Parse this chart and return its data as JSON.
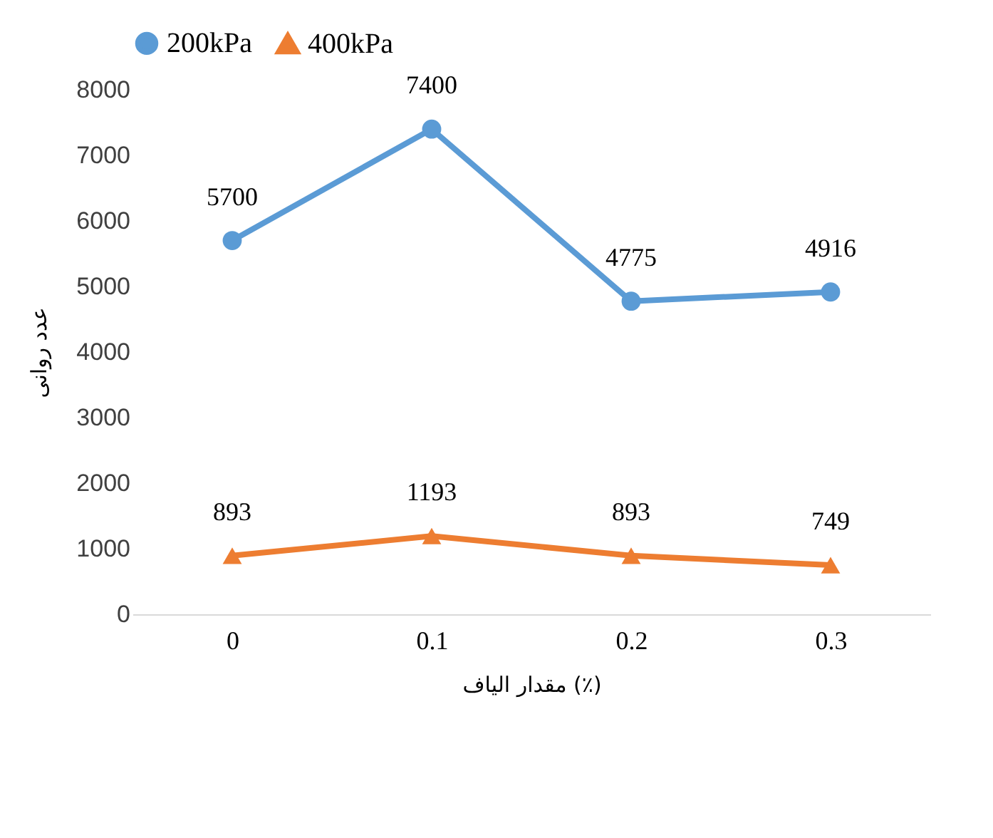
{
  "chart_data": {
    "type": "line",
    "xlabel": "مقدار الیاف (٪)",
    "ylabel": "عدد روانی",
    "categories": [
      "0",
      "0.1",
      "0.2",
      "0.3"
    ],
    "series": [
      {
        "name": "200kPa",
        "color": "#5b9bd5",
        "marker": "circle",
        "values": [
          5700,
          7400,
          4775,
          4916
        ]
      },
      {
        "name": "400kPa",
        "color": "#ed7d31",
        "marker": "triangle",
        "values": [
          893,
          1193,
          893,
          749
        ]
      }
    ],
    "ylim": [
      0,
      8000
    ],
    "yticks": [
      0,
      1000,
      2000,
      3000,
      4000,
      5000,
      6000,
      7000,
      8000
    ],
    "grid": false,
    "legend": "top",
    "data_labels": true
  }
}
